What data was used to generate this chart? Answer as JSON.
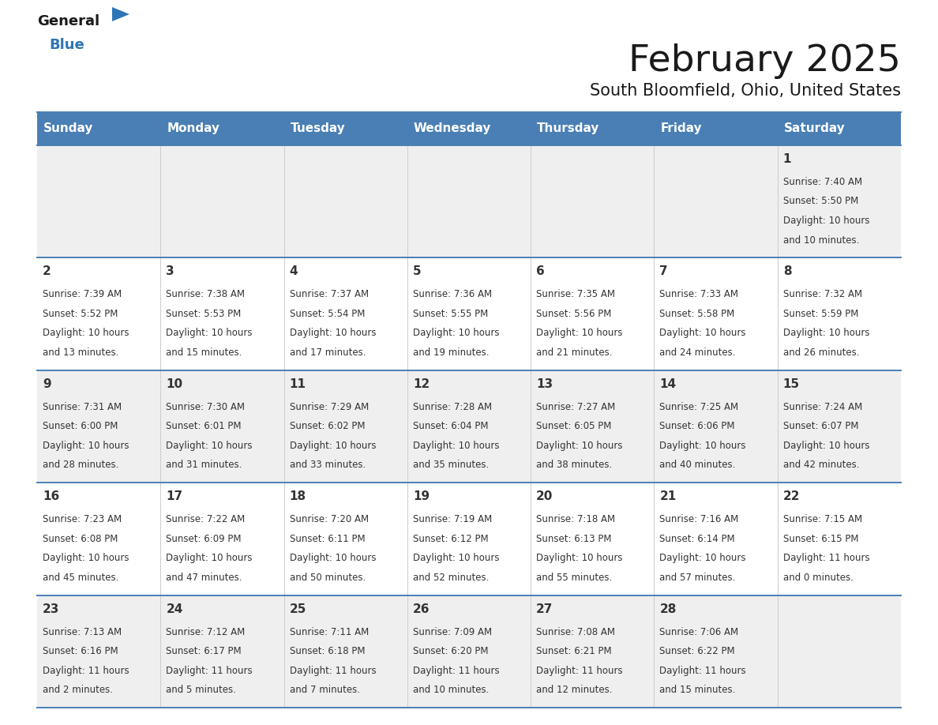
{
  "title": "February 2025",
  "subtitle": "South Bloomfield, Ohio, United States",
  "header_bg_color": "#4A7FB5",
  "header_text_color": "#FFFFFF",
  "row_bg_even": "#EFEFEF",
  "row_bg_odd": "#FFFFFF",
  "grid_line_color": "#4A7FB5",
  "day_headers": [
    "Sunday",
    "Monday",
    "Tuesday",
    "Wednesday",
    "Thursday",
    "Friday",
    "Saturday"
  ],
  "title_color": "#1a1a1a",
  "subtitle_color": "#1a1a1a",
  "cell_text_color": "#333333",
  "day_num_color": "#333333",
  "logo_general_color": "#1a1a1a",
  "logo_blue_color": "#2E75B6",
  "calendar": [
    [
      {
        "day": "",
        "sunrise": "",
        "sunset": "",
        "daylight": ""
      },
      {
        "day": "",
        "sunrise": "",
        "sunset": "",
        "daylight": ""
      },
      {
        "day": "",
        "sunrise": "",
        "sunset": "",
        "daylight": ""
      },
      {
        "day": "",
        "sunrise": "",
        "sunset": "",
        "daylight": ""
      },
      {
        "day": "",
        "sunrise": "",
        "sunset": "",
        "daylight": ""
      },
      {
        "day": "",
        "sunrise": "",
        "sunset": "",
        "daylight": ""
      },
      {
        "day": "1",
        "sunrise": "7:40 AM",
        "sunset": "5:50 PM",
        "daylight": "10 hours\nand 10 minutes."
      }
    ],
    [
      {
        "day": "2",
        "sunrise": "7:39 AM",
        "sunset": "5:52 PM",
        "daylight": "10 hours\nand 13 minutes."
      },
      {
        "day": "3",
        "sunrise": "7:38 AM",
        "sunset": "5:53 PM",
        "daylight": "10 hours\nand 15 minutes."
      },
      {
        "day": "4",
        "sunrise": "7:37 AM",
        "sunset": "5:54 PM",
        "daylight": "10 hours\nand 17 minutes."
      },
      {
        "day": "5",
        "sunrise": "7:36 AM",
        "sunset": "5:55 PM",
        "daylight": "10 hours\nand 19 minutes."
      },
      {
        "day": "6",
        "sunrise": "7:35 AM",
        "sunset": "5:56 PM",
        "daylight": "10 hours\nand 21 minutes."
      },
      {
        "day": "7",
        "sunrise": "7:33 AM",
        "sunset": "5:58 PM",
        "daylight": "10 hours\nand 24 minutes."
      },
      {
        "day": "8",
        "sunrise": "7:32 AM",
        "sunset": "5:59 PM",
        "daylight": "10 hours\nand 26 minutes."
      }
    ],
    [
      {
        "day": "9",
        "sunrise": "7:31 AM",
        "sunset": "6:00 PM",
        "daylight": "10 hours\nand 28 minutes."
      },
      {
        "day": "10",
        "sunrise": "7:30 AM",
        "sunset": "6:01 PM",
        "daylight": "10 hours\nand 31 minutes."
      },
      {
        "day": "11",
        "sunrise": "7:29 AM",
        "sunset": "6:02 PM",
        "daylight": "10 hours\nand 33 minutes."
      },
      {
        "day": "12",
        "sunrise": "7:28 AM",
        "sunset": "6:04 PM",
        "daylight": "10 hours\nand 35 minutes."
      },
      {
        "day": "13",
        "sunrise": "7:27 AM",
        "sunset": "6:05 PM",
        "daylight": "10 hours\nand 38 minutes."
      },
      {
        "day": "14",
        "sunrise": "7:25 AM",
        "sunset": "6:06 PM",
        "daylight": "10 hours\nand 40 minutes."
      },
      {
        "day": "15",
        "sunrise": "7:24 AM",
        "sunset": "6:07 PM",
        "daylight": "10 hours\nand 42 minutes."
      }
    ],
    [
      {
        "day": "16",
        "sunrise": "7:23 AM",
        "sunset": "6:08 PM",
        "daylight": "10 hours\nand 45 minutes."
      },
      {
        "day": "17",
        "sunrise": "7:22 AM",
        "sunset": "6:09 PM",
        "daylight": "10 hours\nand 47 minutes."
      },
      {
        "day": "18",
        "sunrise": "7:20 AM",
        "sunset": "6:11 PM",
        "daylight": "10 hours\nand 50 minutes."
      },
      {
        "day": "19",
        "sunrise": "7:19 AM",
        "sunset": "6:12 PM",
        "daylight": "10 hours\nand 52 minutes."
      },
      {
        "day": "20",
        "sunrise": "7:18 AM",
        "sunset": "6:13 PM",
        "daylight": "10 hours\nand 55 minutes."
      },
      {
        "day": "21",
        "sunrise": "7:16 AM",
        "sunset": "6:14 PM",
        "daylight": "10 hours\nand 57 minutes."
      },
      {
        "day": "22",
        "sunrise": "7:15 AM",
        "sunset": "6:15 PM",
        "daylight": "11 hours\nand 0 minutes."
      }
    ],
    [
      {
        "day": "23",
        "sunrise": "7:13 AM",
        "sunset": "6:16 PM",
        "daylight": "11 hours\nand 2 minutes."
      },
      {
        "day": "24",
        "sunrise": "7:12 AM",
        "sunset": "6:17 PM",
        "daylight": "11 hours\nand 5 minutes."
      },
      {
        "day": "25",
        "sunrise": "7:11 AM",
        "sunset": "6:18 PM",
        "daylight": "11 hours\nand 7 minutes."
      },
      {
        "day": "26",
        "sunrise": "7:09 AM",
        "sunset": "6:20 PM",
        "daylight": "11 hours\nand 10 minutes."
      },
      {
        "day": "27",
        "sunrise": "7:08 AM",
        "sunset": "6:21 PM",
        "daylight": "11 hours\nand 12 minutes."
      },
      {
        "day": "28",
        "sunrise": "7:06 AM",
        "sunset": "6:22 PM",
        "daylight": "11 hours\nand 15 minutes."
      },
      {
        "day": "",
        "sunrise": "",
        "sunset": "",
        "daylight": ""
      }
    ]
  ]
}
